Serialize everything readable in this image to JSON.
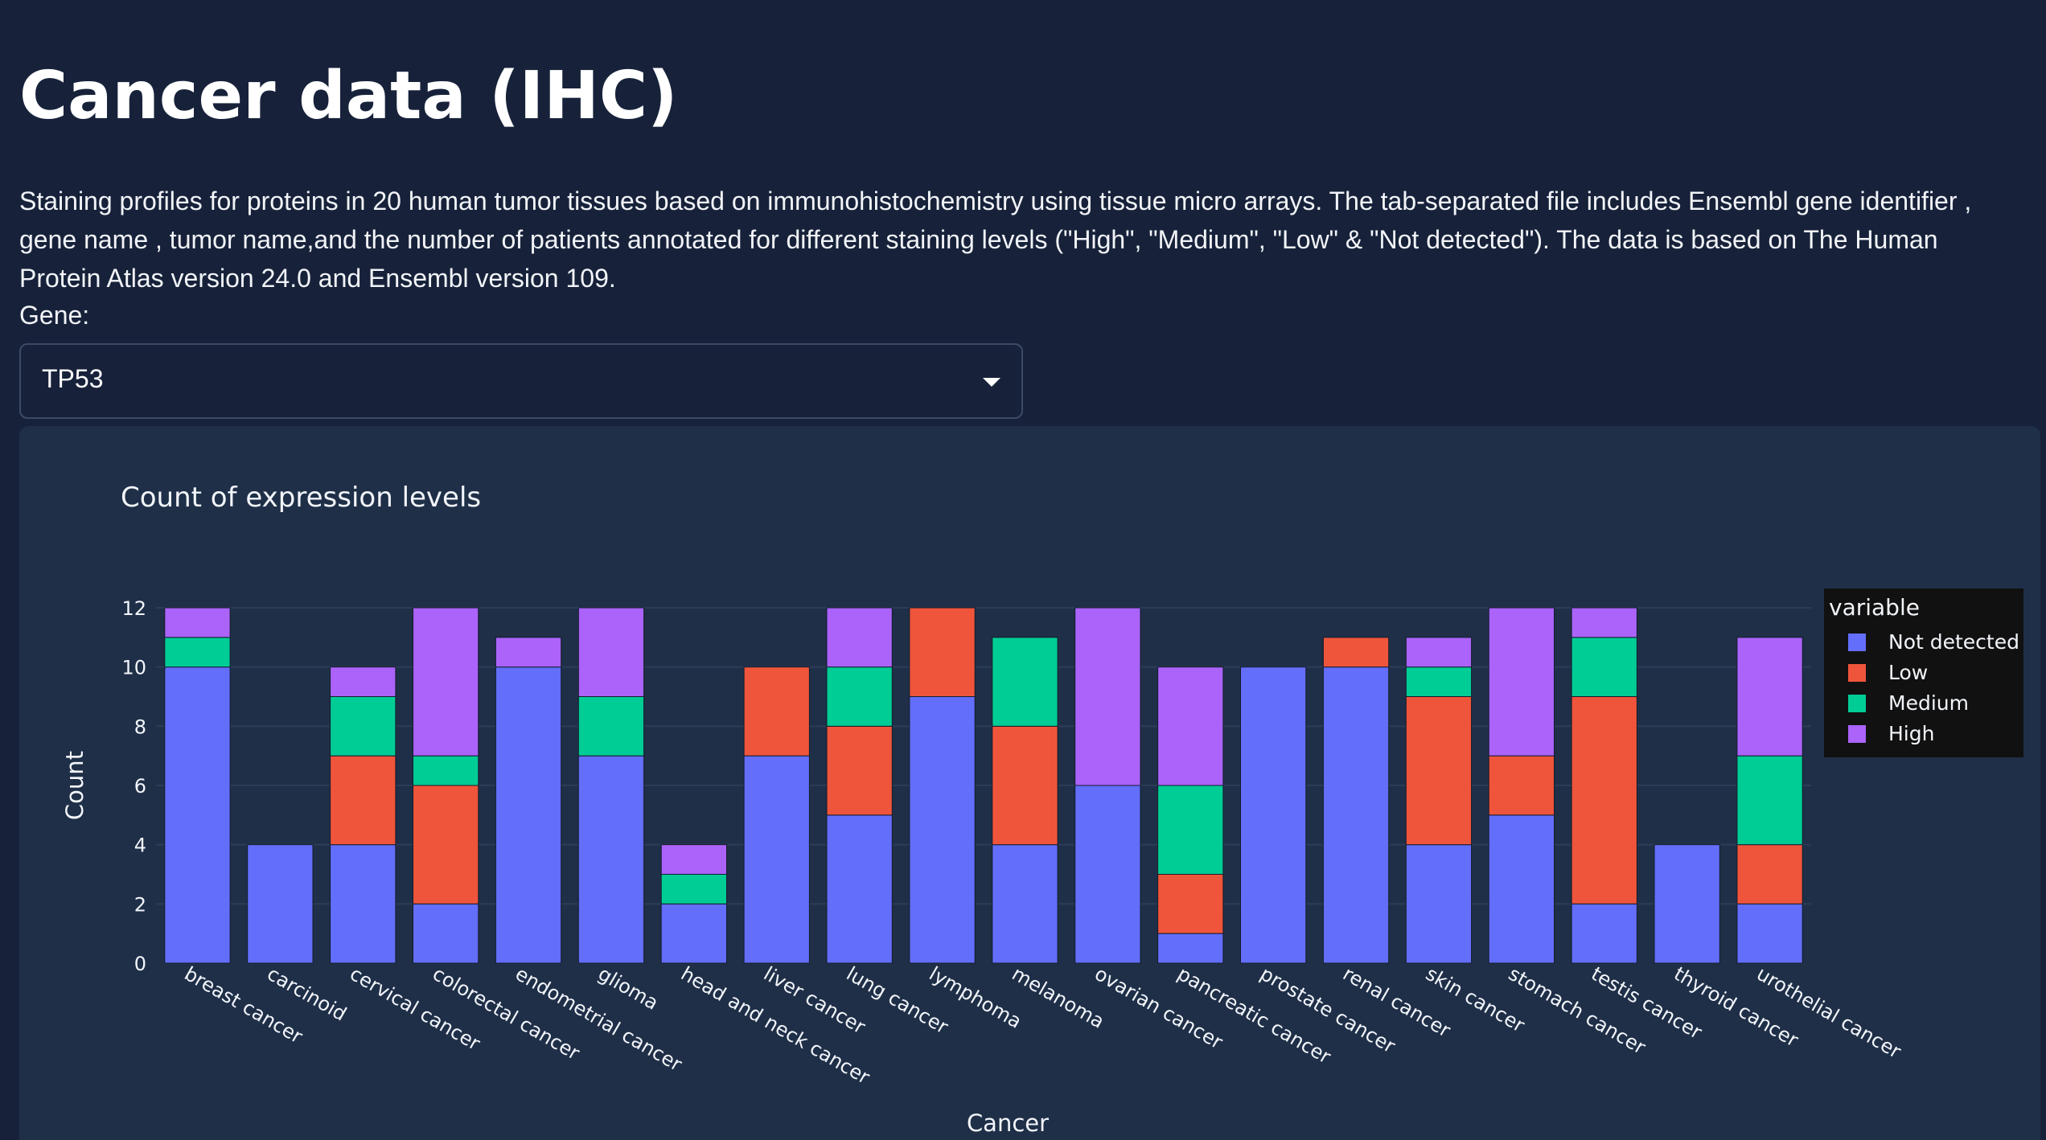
{
  "page": {
    "title": "Cancer data (IHC)",
    "description": "Staining profiles for proteins in 20 human tumor tissues based on immunohistochemistry using tissue micro arrays. The tab-separated file includes Ensembl gene identifier , gene name , tumor name,and the number of patients annotated for different staining levels (\"High\", \"Medium\", \"Low\" & \"Not detected\"). The data is based on The Human Protein Atlas version 24.0 and Ensembl version 109."
  },
  "gene_selector": {
    "label": "Gene:",
    "value": "TP53",
    "icon": "caret-down-icon"
  },
  "colors": {
    "background": "#17223a",
    "panel": "#1f2f48",
    "grid": "#2c3d57"
  },
  "chart_data": {
    "type": "bar",
    "stacked": true,
    "title": "Count of expression levels",
    "xlabel": "Cancer",
    "ylabel": "Count",
    "ylim": [
      0,
      12
    ],
    "yticks": [
      0,
      2,
      4,
      6,
      8,
      10,
      12
    ],
    "grid": true,
    "legend": {
      "title": "variable",
      "position": "right"
    },
    "categories": [
      "breast cancer",
      "carcinoid",
      "cervical cancer",
      "colorectal cancer",
      "endometrial cancer",
      "glioma",
      "head and neck cancer",
      "liver cancer",
      "lung cancer",
      "lymphoma",
      "melanoma",
      "ovarian cancer",
      "pancreatic cancer",
      "prostate cancer",
      "renal cancer",
      "skin cancer",
      "stomach cancer",
      "testis cancer",
      "thyroid cancer",
      "urothelial cancer"
    ],
    "series": [
      {
        "name": "Not detected",
        "color": "#636efa",
        "values": [
          10,
          4,
          4,
          2,
          10,
          7,
          2,
          7,
          5,
          9,
          4,
          6,
          1,
          10,
          10,
          4,
          5,
          2,
          4,
          2
        ]
      },
      {
        "name": "Low",
        "color": "#ef553b",
        "values": [
          0,
          0,
          3,
          4,
          0,
          0,
          0,
          3,
          3,
          3,
          4,
          0,
          2,
          0,
          1,
          5,
          2,
          7,
          0,
          2
        ]
      },
      {
        "name": "Medium",
        "color": "#00cc96",
        "values": [
          1,
          0,
          2,
          1,
          0,
          2,
          1,
          0,
          2,
          0,
          3,
          0,
          3,
          0,
          0,
          1,
          0,
          2,
          0,
          3
        ]
      },
      {
        "name": "High",
        "color": "#ab63fa",
        "values": [
          1,
          0,
          1,
          5,
          1,
          3,
          1,
          0,
          2,
          0,
          0,
          6,
          4,
          0,
          0,
          1,
          5,
          1,
          0,
          4
        ]
      }
    ]
  }
}
